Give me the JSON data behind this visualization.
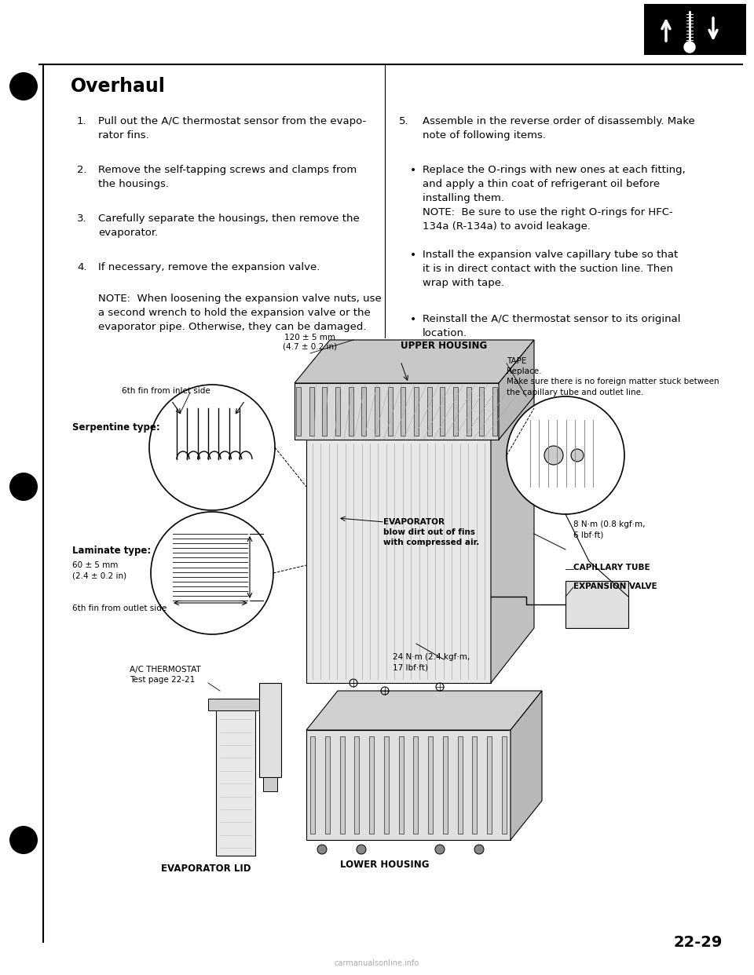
{
  "bg_color": "#ffffff",
  "title": "Overhaul",
  "items_left": [
    {
      "num": "1.",
      "text": "Pull out the A/C thermostat sensor from the evapo-\nrator fins."
    },
    {
      "num": "2.",
      "text": "Remove the self-tapping screws and clamps from\nthe housings."
    },
    {
      "num": "3.",
      "text": "Carefully separate the housings, then remove the\nevaporator."
    },
    {
      "num": "4.",
      "text": "If necessary, remove the expansion valve."
    }
  ],
  "note_left": "NOTE:  When loosening the expansion valve nuts, use\na second wrench to hold the expansion valve or the\nevaporator pipe. Otherwise, they can be damaged.",
  "item5_num": "5.",
  "item5_text": "Assemble in the reverse order of disassembly. Make\nnote of following items.",
  "bullets_right": [
    "Replace the O-rings with new ones at each fitting,\nand apply a thin coat of refrigerant oil before\ninstalling them.\nNOTE:  Be sure to use the right O-rings for HFC-\n134a (R-134a) to avoid leakage.",
    "Install the expansion valve capillary tube so that\nit is in direct contact with the suction line. Then\nwrap with tape.",
    "Reinstall the A/C thermostat sensor to its original\nlocation."
  ],
  "page_num": "22-29",
  "watermark": "carmanualsonline.info",
  "diagram_labels": {
    "6th_fin_inlet": "6th fin from inlet side",
    "serpentine": "Serpentine type:",
    "laminate": "Laminate type:",
    "dim_laminate": "60 ± 5 mm\n(2.4 ± 0.2 in)",
    "dim_serpentine": "120 ± 5 mm\n(4.7 ± 0.2 in)",
    "upper_housing": "UPPER HOUSING",
    "tape": "TAPE\nReplace.\nMake sure there is no foreign matter stuck between\nthe capillary tube and outlet line.",
    "evaporator": "EVAPORATOR\nblow dirt out of fins\nwith compressed air.",
    "torque1": "8 N·m (0.8 kgf·m,\n6 lbf·ft)",
    "capillary": "CAPILLARY TUBE",
    "expansion": "EXPANSION VALVE",
    "torque2": "24 N·m (2.4 kgf·m,\n17 lbf·ft)",
    "thermostat": "A/C THERMOSTAT\nTest page 22-21",
    "evap_lid": "EVAPORATOR LID",
    "lower_housing": "LOWER HOUSING",
    "6th_fin_outlet": "6th fin from outlet side"
  }
}
